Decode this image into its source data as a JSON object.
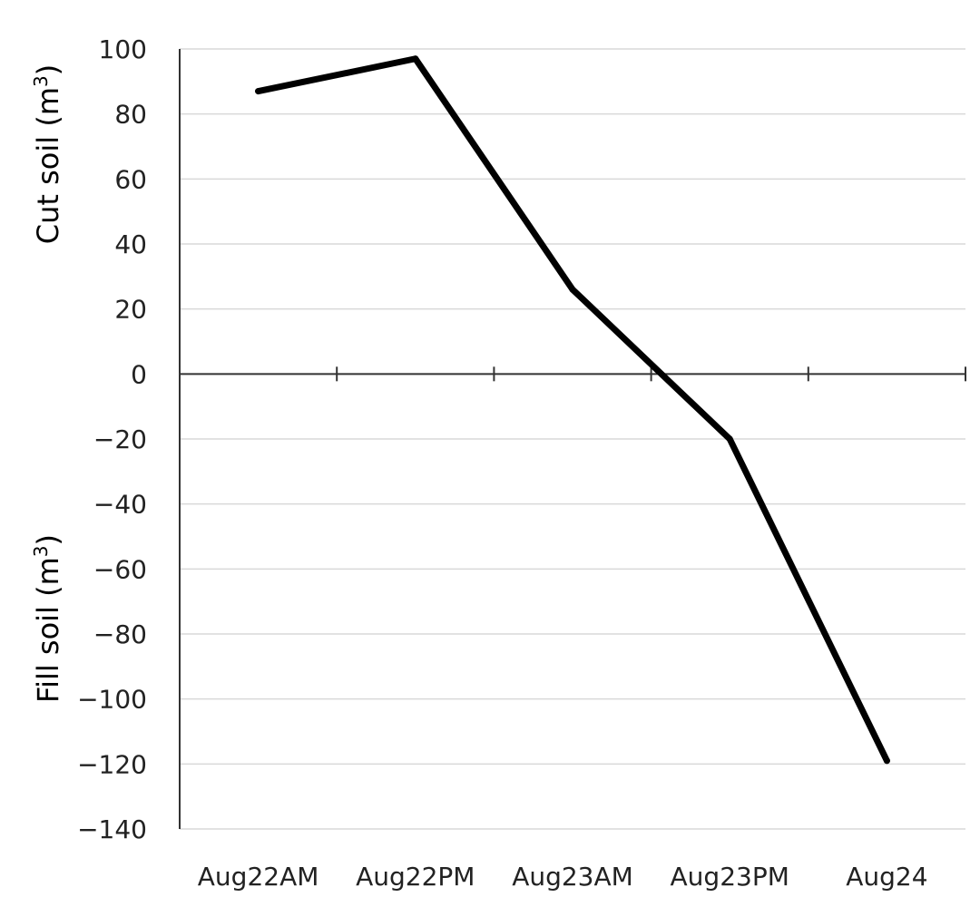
{
  "chart_data": {
    "type": "line",
    "categories": [
      "Aug22AM",
      "Aug22PM",
      "Aug23AM",
      "Aug23PM",
      "Aug24"
    ],
    "series": [
      {
        "values": [
          87,
          97,
          26,
          -20,
          -119
        ]
      }
    ],
    "ylabel_upper": {
      "text": "Cut soil (m",
      "sup": "3",
      "close": ")"
    },
    "ylabel_lower": {
      "text": "Fill soil (m",
      "sup": "3",
      "close": ")"
    },
    "ylim": [
      -140,
      100
    ],
    "yticks": [
      100,
      80,
      60,
      40,
      20,
      0,
      -20,
      -40,
      -60,
      -80,
      -100,
      -120,
      -140
    ],
    "ytick_labels": [
      "100",
      "80",
      "60",
      "40",
      "20",
      "0",
      "−20",
      "−40",
      "−60",
      "−80",
      "−100",
      "−120",
      "−140"
    ],
    "grid": true,
    "line_color": "#000000"
  }
}
